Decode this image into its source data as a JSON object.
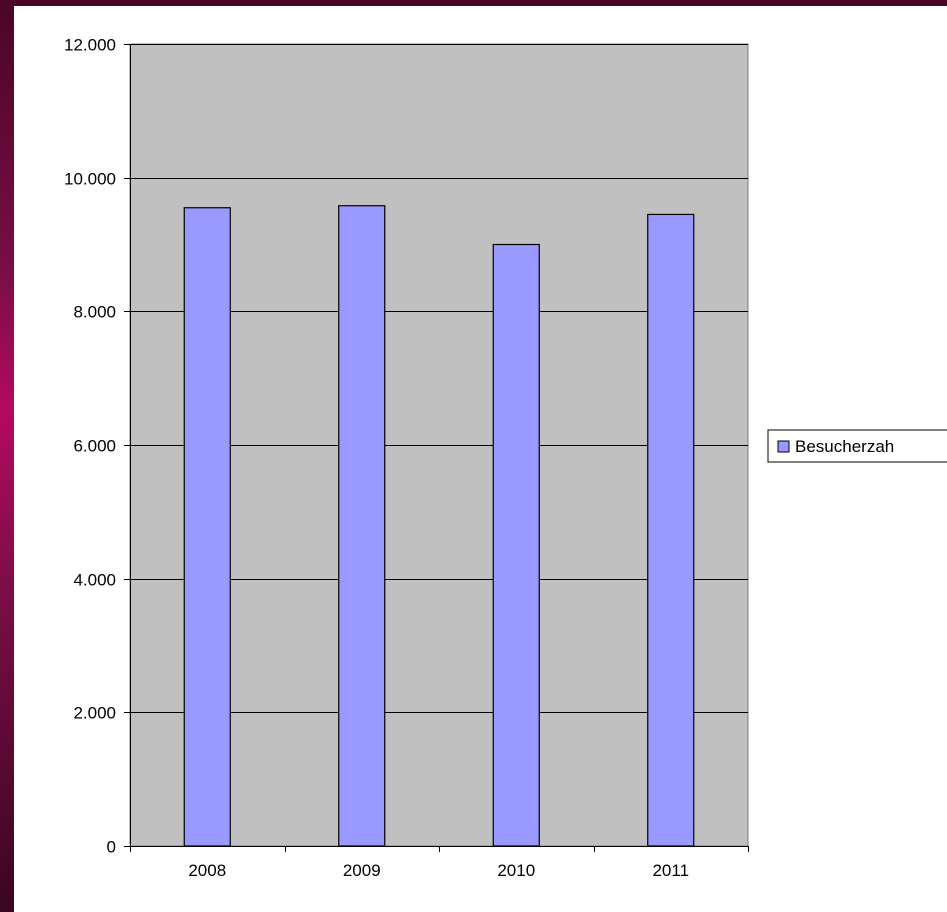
{
  "chart_data": {
    "type": "bar",
    "title": "",
    "xlabel": "",
    "ylabel": "",
    "categories": [
      "2008",
      "2009",
      "2010",
      "2011"
    ],
    "series": [
      {
        "name": "Besucherzah",
        "values": [
          9550,
          9580,
          9000,
          9450
        ]
      }
    ],
    "ylim": [
      0,
      12000
    ],
    "y_ticks": [
      0,
      2000,
      4000,
      6000,
      8000,
      10000,
      12000
    ],
    "y_tick_labels": [
      "0",
      "2.000",
      "4.000",
      "6.000",
      "8.000",
      "10.000",
      "12.000"
    ],
    "grid": true,
    "legend_position": "right",
    "colors": {
      "plot_background": "#c0c0c0",
      "bar_fill": "#9999ff",
      "bar_stroke": "#000000",
      "gridline": "#000000"
    }
  }
}
